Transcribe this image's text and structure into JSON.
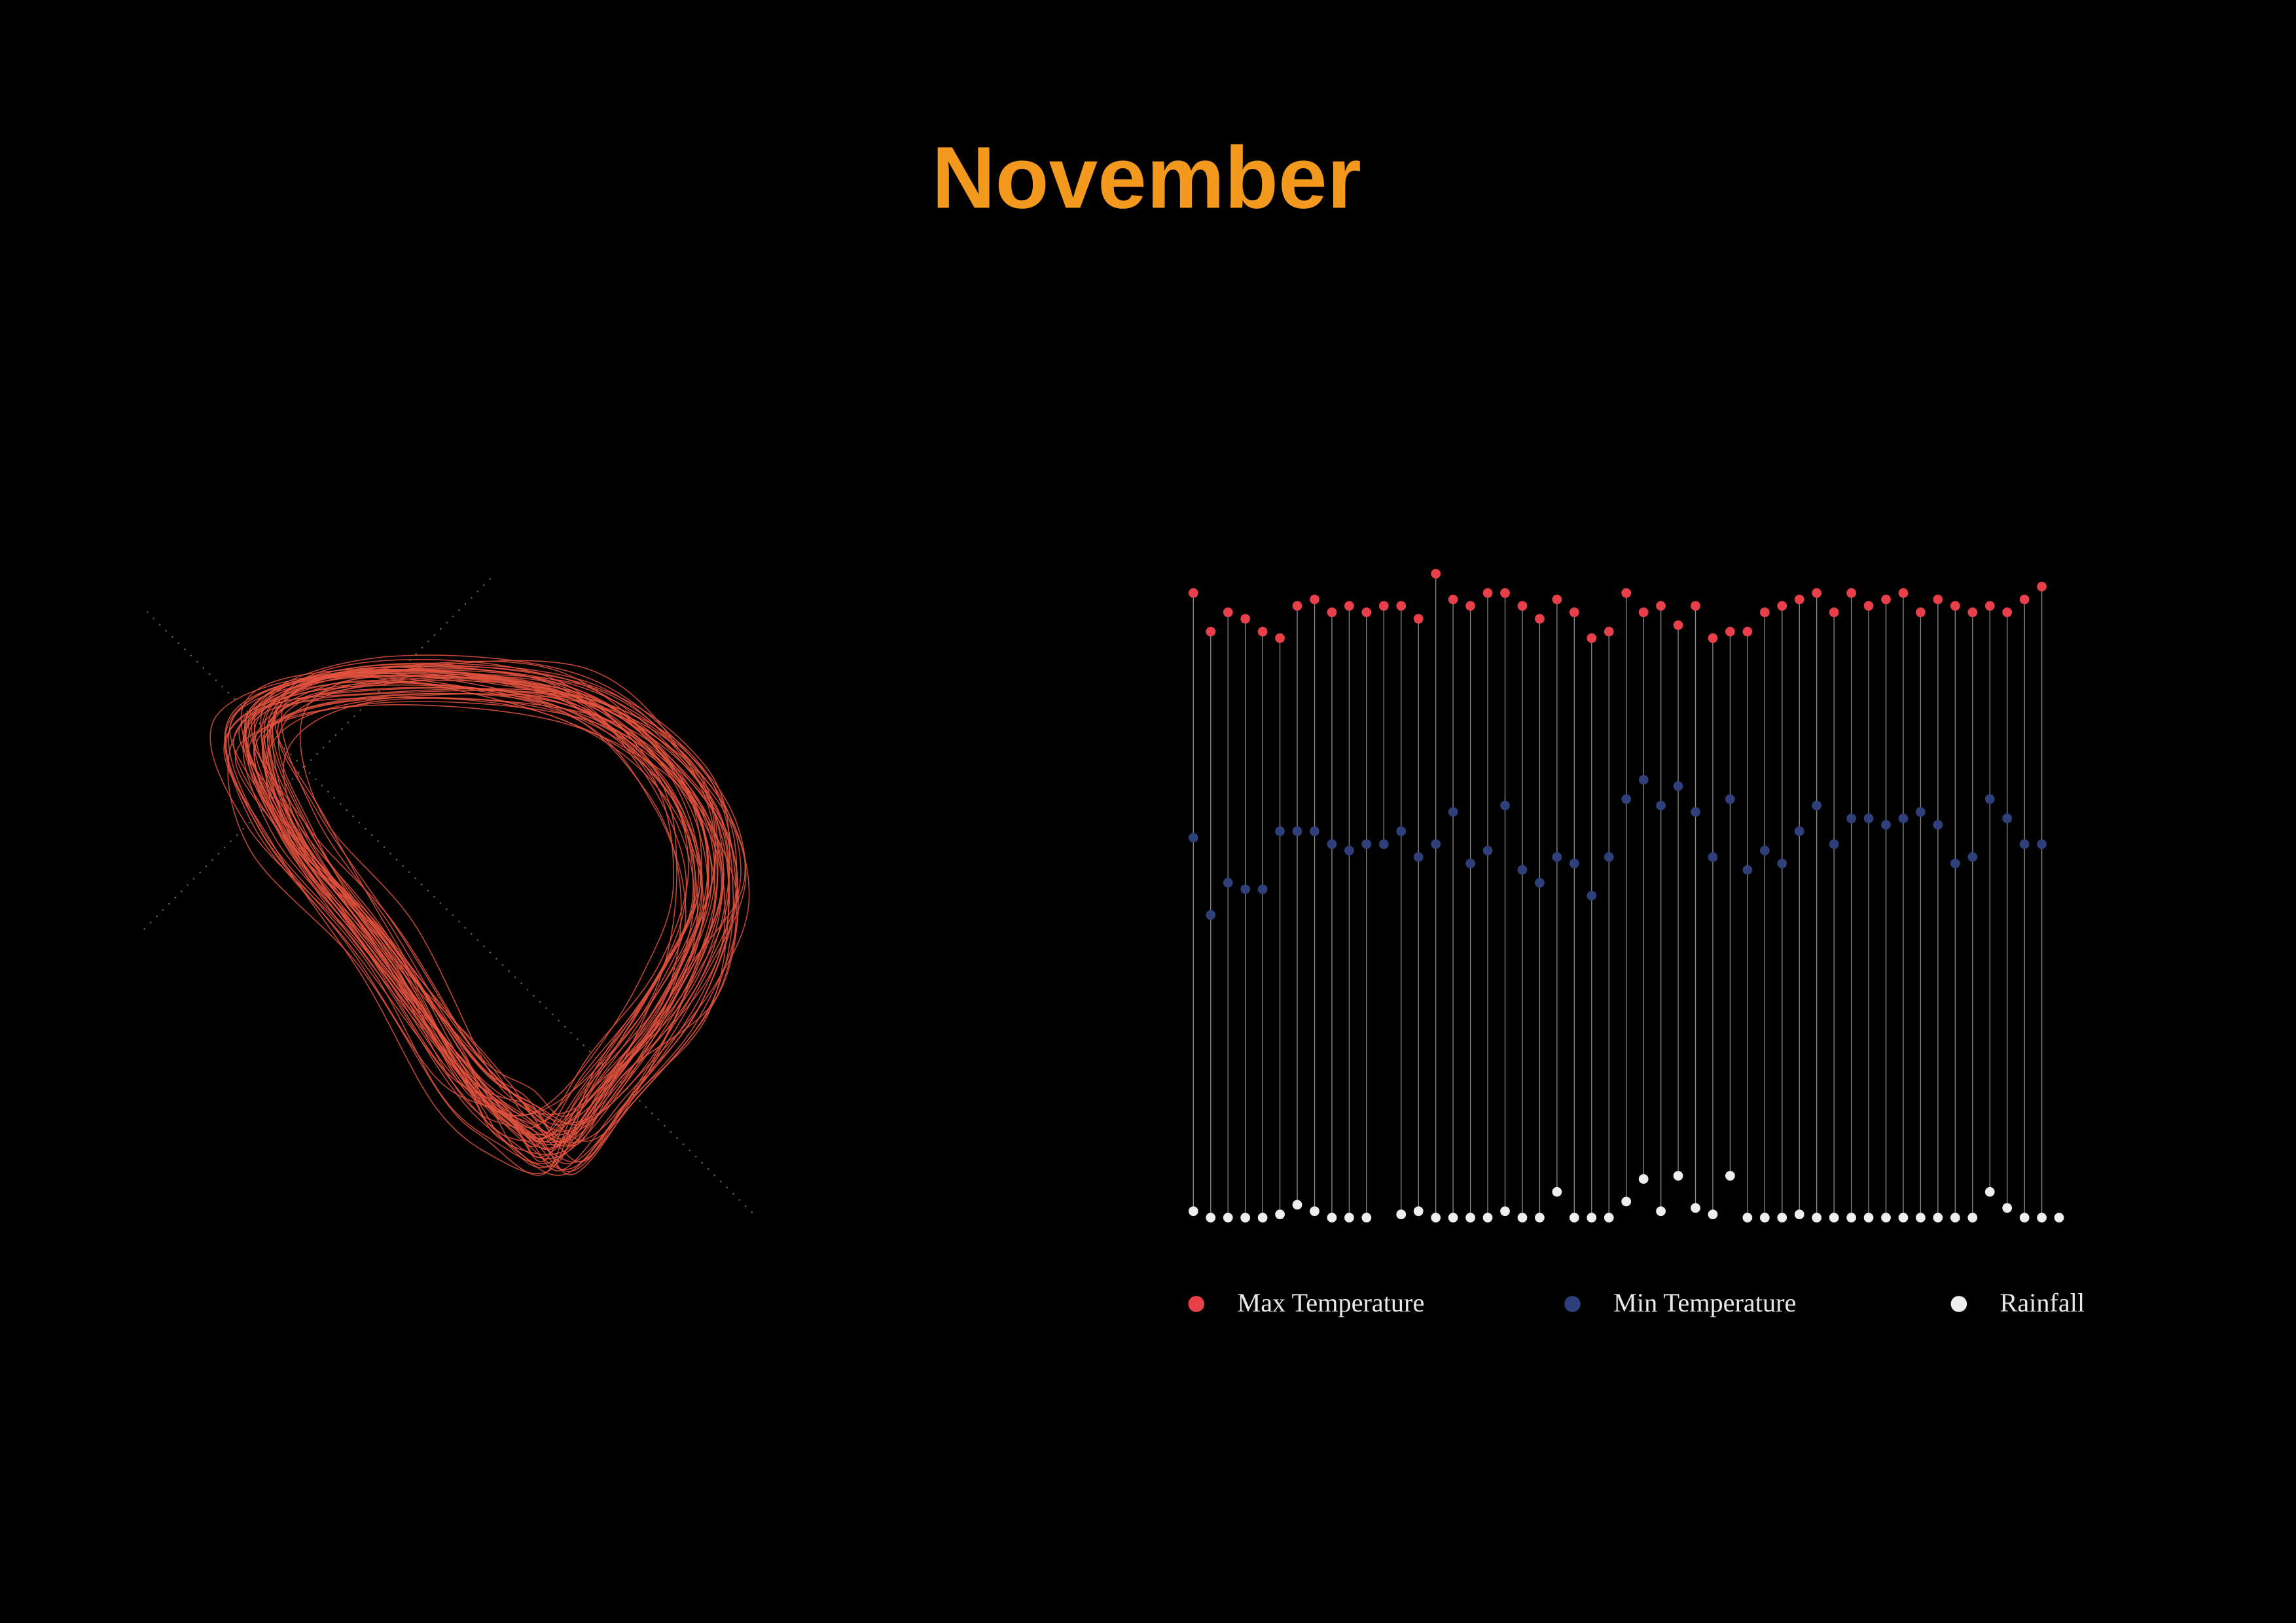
{
  "chart_data": {
    "type": "dot-strip",
    "title": "November",
    "categories": [
      null,
      null,
      null,
      null,
      null,
      null,
      null,
      null,
      null,
      null,
      null,
      null,
      null,
      null,
      null,
      null,
      null,
      null,
      null,
      null,
      null,
      null,
      null,
      null,
      null,
      null,
      null,
      null,
      null,
      null,
      null,
      null,
      null,
      null,
      null,
      null,
      null,
      null,
      null,
      null,
      null,
      null,
      null,
      null,
      null,
      null,
      null,
      null,
      null,
      null,
      null
    ],
    "ylim": [
      0,
      100
    ],
    "series": [
      {
        "name": "Max Temperature",
        "color": "#e8404a",
        "values": [
          97,
          91,
          94,
          93,
          91,
          90,
          95,
          96,
          94,
          95,
          94,
          95,
          95,
          93,
          100,
          96,
          95,
          97,
          97,
          95,
          93,
          96,
          94,
          90,
          91,
          97,
          94,
          95,
          92,
          95,
          90,
          91,
          91,
          94,
          95,
          96,
          97,
          94,
          97,
          95,
          96,
          97,
          94,
          96,
          95,
          94,
          95,
          94,
          96,
          98,
          null
        ]
      },
      {
        "name": "Min Temperature",
        "color": "#2e3f7a",
        "values": [
          59,
          47,
          52,
          51,
          51,
          60,
          60,
          60,
          58,
          57,
          58,
          58,
          60,
          56,
          58,
          63,
          55,
          57,
          64,
          54,
          52,
          56,
          55,
          50,
          56,
          65,
          68,
          64,
          67,
          63,
          56,
          65,
          54,
          57,
          55,
          60,
          64,
          58,
          62,
          62,
          61,
          62,
          63,
          61,
          55,
          56,
          65,
          62,
          58,
          58,
          null
        ]
      },
      {
        "name": "Rainfall",
        "color": "#eeeeee",
        "values": [
          1,
          0,
          0,
          0,
          0,
          0.5,
          2,
          1,
          0,
          0,
          0,
          null,
          0.5,
          1,
          0,
          0,
          0,
          0,
          1,
          0,
          0,
          4,
          0,
          0,
          0,
          2.5,
          6,
          1,
          6.5,
          1.5,
          0.5,
          6.5,
          0,
          0,
          0,
          0.5,
          0,
          0,
          0,
          0,
          0,
          0,
          0,
          0,
          0,
          0,
          4,
          1.5,
          0,
          0,
          0
        ]
      }
    ]
  }
}
